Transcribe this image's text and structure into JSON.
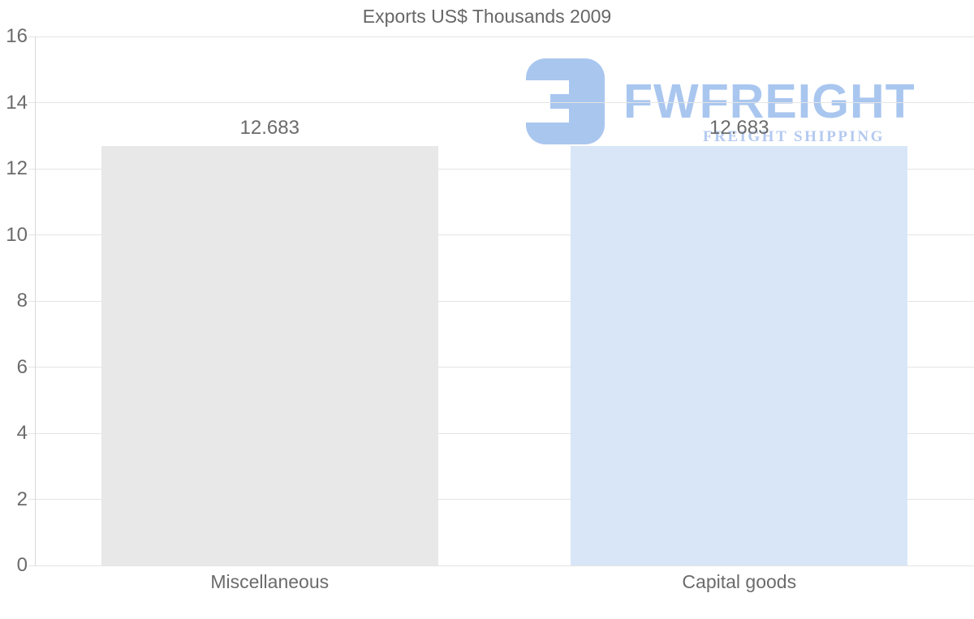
{
  "chart_data": {
    "type": "bar",
    "title": "Exports US$ Thousands 2009",
    "categories": [
      "Miscellaneous",
      "Capital goods"
    ],
    "values": [
      12.683,
      12.683
    ],
    "data_labels": [
      "12.683",
      "12.683"
    ],
    "series": [
      {
        "name": "Exports US$ Thousands 2009",
        "values": [
          12.683,
          12.683
        ]
      }
    ],
    "bar_colors": [
      "#e8e8e8",
      "#d8e6f8"
    ],
    "xlabel": "",
    "ylabel": "",
    "ylim": [
      0,
      16
    ],
    "yticks": [
      0,
      2,
      4,
      6,
      8,
      10,
      12,
      14,
      16
    ],
    "grid": "horizontal gridlines on",
    "legend": "none"
  },
  "watermark": {
    "text": "FWFREIGHT",
    "tagline": "FREIGHT SHIPPING",
    "logo_icon": "fwfreight-logo",
    "color": "#a9c6ef",
    "tagline_color": "#b3c9f0"
  },
  "styles": {
    "text_color": "#6b6b6b",
    "title_color": "#676767",
    "grid_color": "#e4e4e4",
    "axis_color": "#d9d9d9",
    "background": "#ffffff"
  }
}
